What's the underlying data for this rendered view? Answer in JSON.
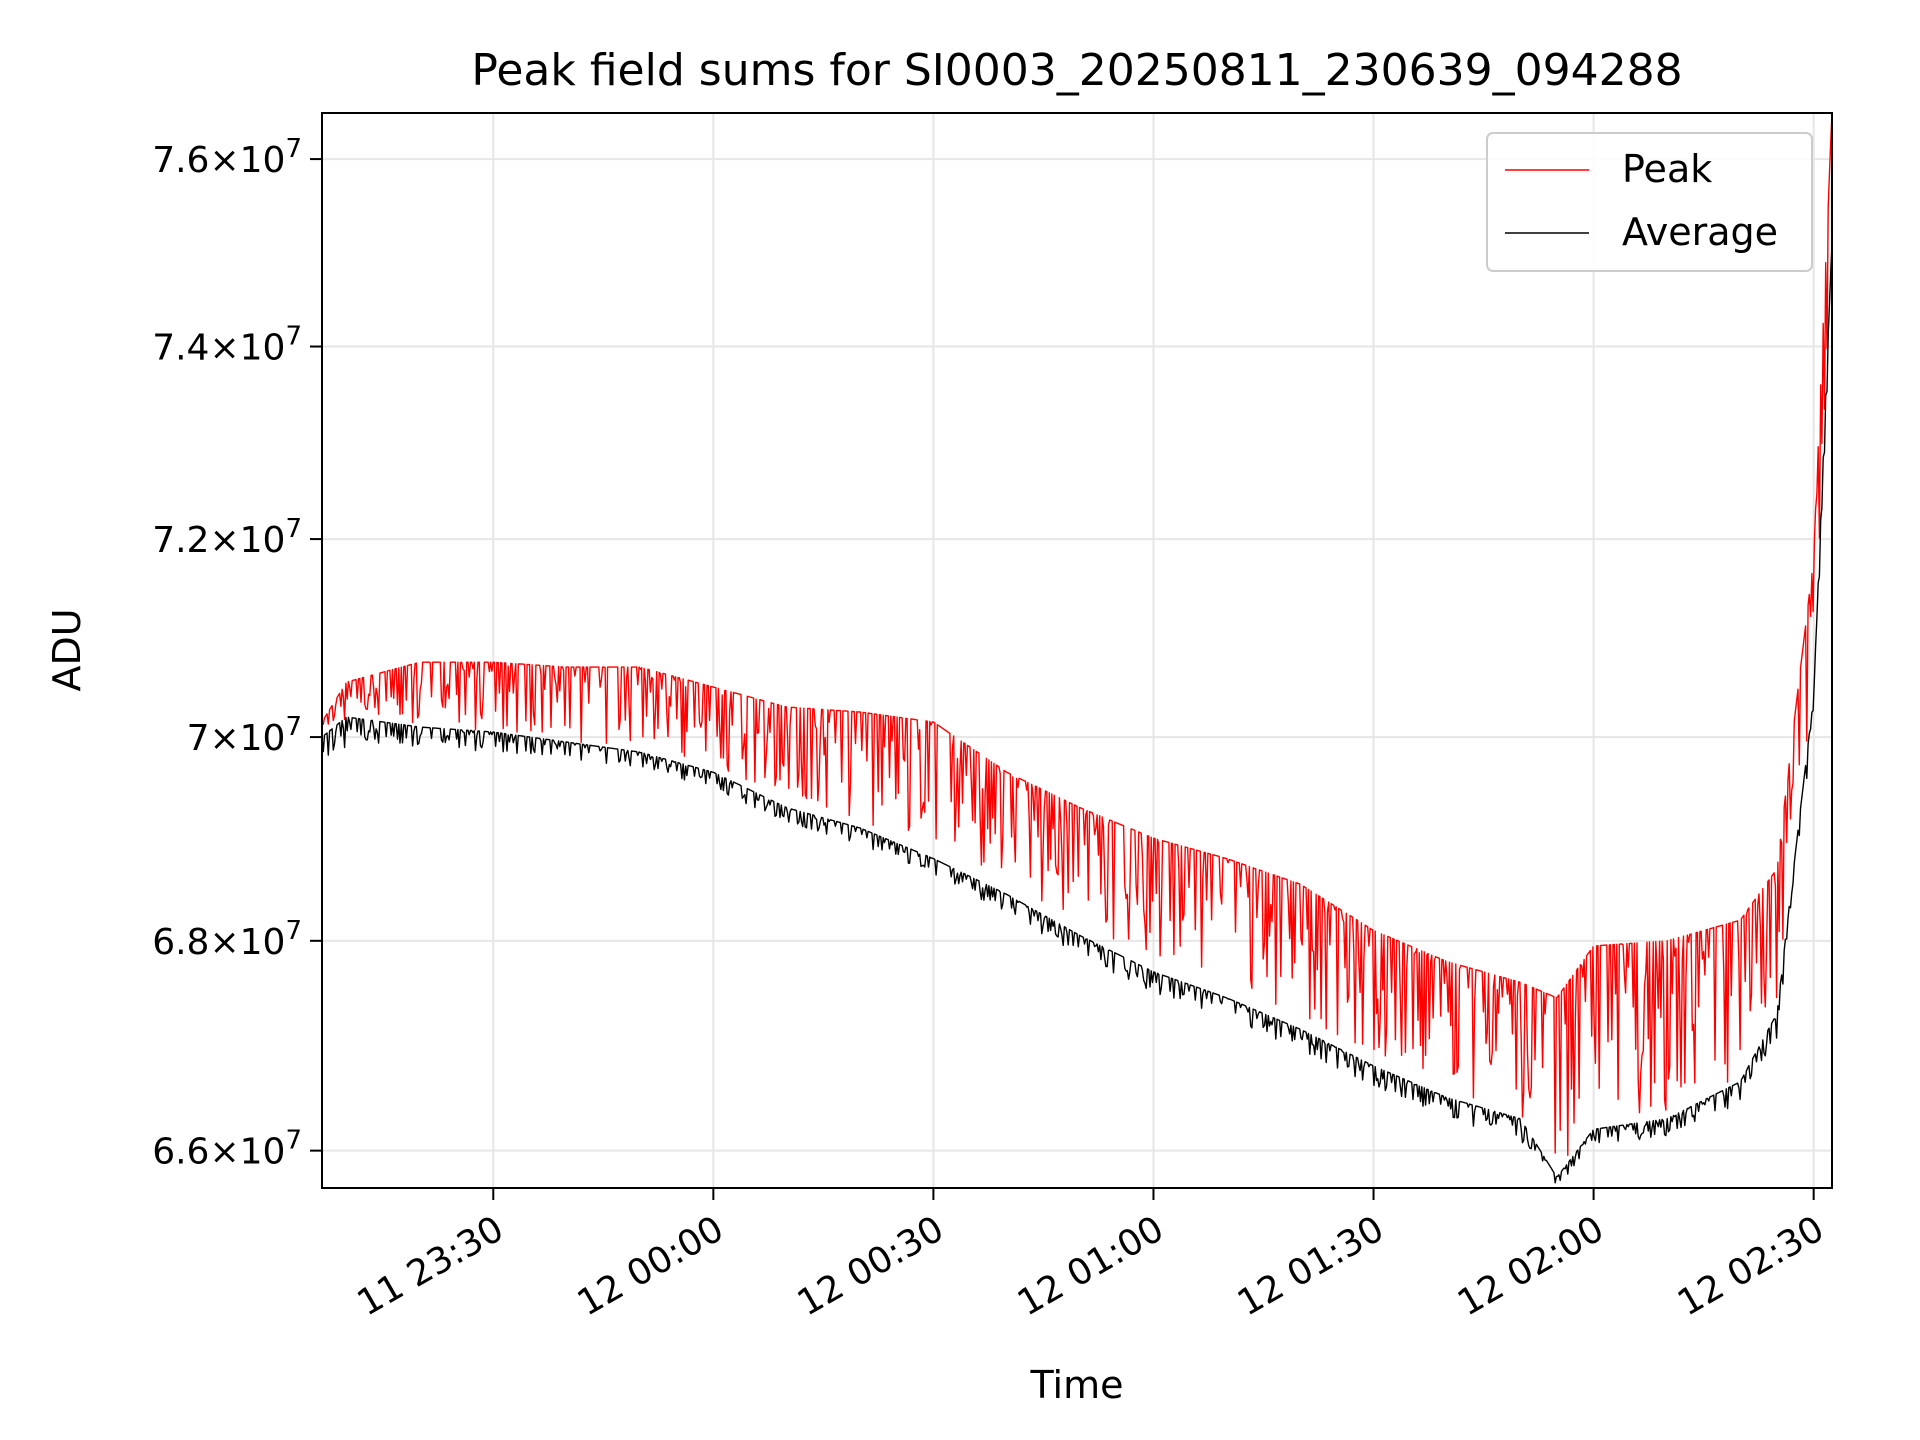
{
  "chart_data": {
    "type": "line",
    "title": "Peak field sums for SI0003_20250811_230639_094288",
    "xlabel": "Time",
    "ylabel": "ADU",
    "x_unit": "datetime",
    "xlim": [
      "2025-08-11 23:06:39",
      "2025-08-12 02:32:30"
    ],
    "ylim": [
      65650000,
      76500000
    ],
    "y_scale": "log",
    "grid": true,
    "legend_position": "upper right",
    "x_ticks": [
      {
        "value": "2025-08-11 23:30:00",
        "label": "11 23:30"
      },
      {
        "value": "2025-08-12 00:00:00",
        "label": "12 00:00"
      },
      {
        "value": "2025-08-12 00:30:00",
        "label": "12 00:30"
      },
      {
        "value": "2025-08-12 01:00:00",
        "label": "12 01:00"
      },
      {
        "value": "2025-08-12 01:30:00",
        "label": "12 01:30"
      },
      {
        "value": "2025-08-12 02:00:00",
        "label": "12 02:00"
      },
      {
        "value": "2025-08-12 02:30:00",
        "label": "12 02:30"
      }
    ],
    "y_ticks": [
      {
        "value": 66000000,
        "mantissa": "6.6",
        "exponent": "7"
      },
      {
        "value": 68000000,
        "mantissa": "6.8",
        "exponent": "7"
      },
      {
        "value": 70000000,
        "mantissa": "7",
        "exponent": "7"
      },
      {
        "value": 72000000,
        "mantissa": "7.2",
        "exponent": "7"
      },
      {
        "value": 74000000,
        "mantissa": "7.4",
        "exponent": "7"
      },
      {
        "value": 76000000,
        "mantissa": "7.6",
        "exponent": "7"
      }
    ],
    "x": [
      "2025-08-11 23:06:39",
      "2025-08-11 23:10:00",
      "2025-08-11 23:20:00",
      "2025-08-11 23:30:00",
      "2025-08-11 23:40:00",
      "2025-08-11 23:50:00",
      "2025-08-12 00:00:00",
      "2025-08-12 00:10:00",
      "2025-08-12 00:20:00",
      "2025-08-12 00:30:00",
      "2025-08-12 00:40:00",
      "2025-08-12 00:50:00",
      "2025-08-12 01:00:00",
      "2025-08-12 01:10:00",
      "2025-08-12 01:20:00",
      "2025-08-12 01:30:00",
      "2025-08-12 01:40:00",
      "2025-08-12 01:50:00",
      "2025-08-12 01:55:00",
      "2025-08-12 02:00:00",
      "2025-08-12 02:10:00",
      "2025-08-12 02:20:00",
      "2025-08-12 02:25:00",
      "2025-08-12 02:30:00",
      "2025-08-12 02:32:30"
    ],
    "series": [
      {
        "name": "Peak",
        "color": "#ff0000",
        "base": [
          70150000,
          70550000,
          70750000,
          70750000,
          70700000,
          70700000,
          70500000,
          70300000,
          70250000,
          70150000,
          69650000,
          69300000,
          69000000,
          68800000,
          68550000,
          68100000,
          67800000,
          67600000,
          67450000,
          67950000,
          68000000,
          68200000,
          68700000,
          71800000,
          76500000
        ],
        "low": [
          70100000,
          70150000,
          70100000,
          70050000,
          69950000,
          69900000,
          69700000,
          69350000,
          69150000,
          68900000,
          68500000,
          68150000,
          67850000,
          67550000,
          67250000,
          66850000,
          66550000,
          66350000,
          65800000,
          66300000,
          66350000,
          66700000,
          67400000,
          70500000,
          75200000
        ]
      },
      {
        "name": "Average",
        "color": "#000000",
        "base": [
          70000000,
          70200000,
          70100000,
          70050000,
          69950000,
          69850000,
          69650000,
          69300000,
          69100000,
          68800000,
          68450000,
          68050000,
          67700000,
          67450000,
          67150000,
          66800000,
          66500000,
          66300000,
          65750000,
          66200000,
          66300000,
          66650000,
          67300000,
          70400000,
          75100000
        ],
        "low": [
          69700000,
          69800000,
          69850000,
          69800000,
          69750000,
          69650000,
          69450000,
          69100000,
          68900000,
          68600000,
          68200000,
          67800000,
          67450000,
          67200000,
          66900000,
          66550000,
          66250000,
          66050000,
          65650000,
          66000000,
          66100000,
          66400000,
          67000000,
          70100000,
          74700000
        ]
      }
    ]
  }
}
